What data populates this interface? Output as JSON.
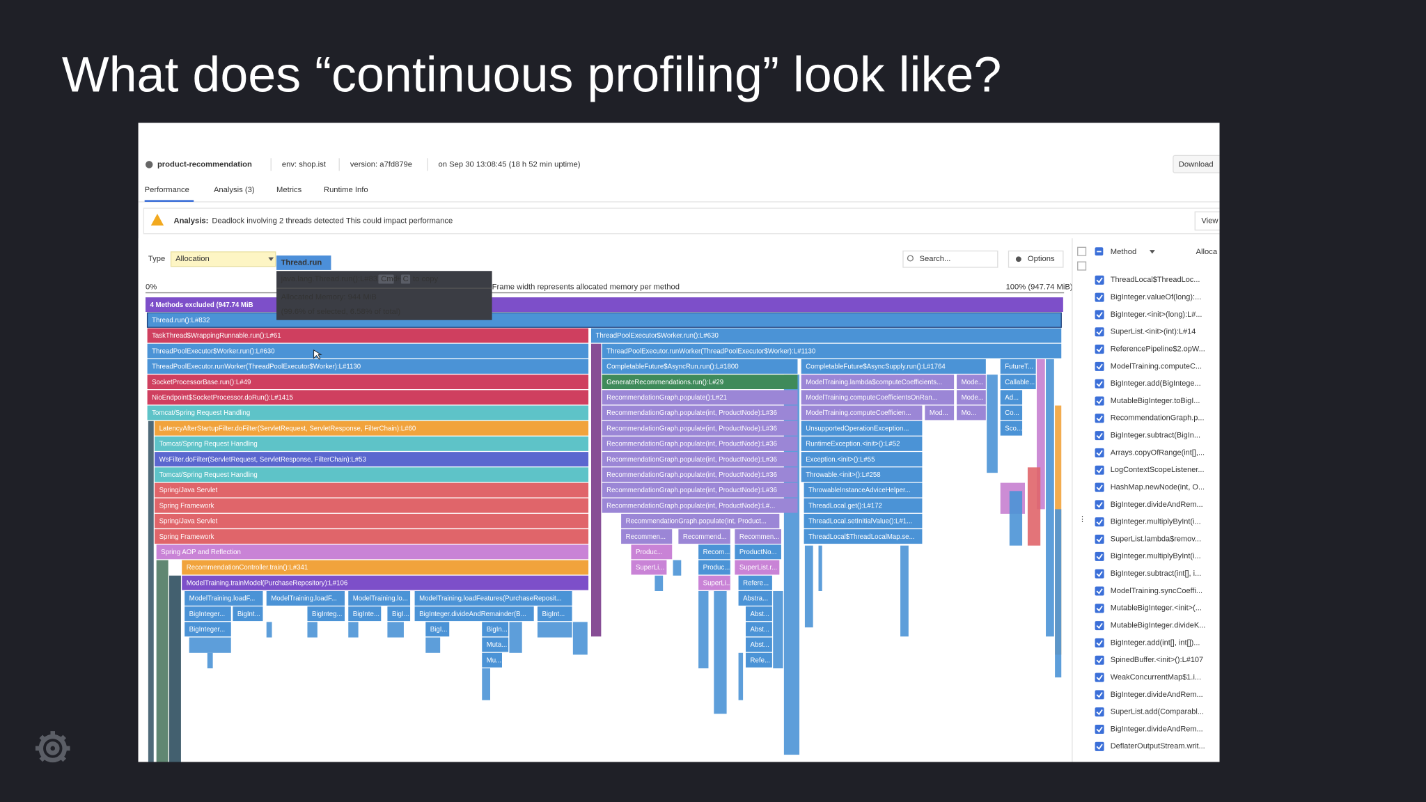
{
  "slide": {
    "title": "What does “continuous profiling” look like?"
  },
  "header": {
    "service": "product-recommendation",
    "env": "env: shop.ist",
    "version": "version: a7fd879e",
    "time": "on Sep 30 13:08:45 (18 h 52 min uptime)",
    "download": "Download"
  },
  "tabs": [
    "Performance",
    "Analysis (3)",
    "Metrics",
    "Runtime Info"
  ],
  "banner": {
    "label": "Analysis:",
    "text": "Deadlock involving 2 threads detected This could impact performance",
    "action": "View"
  },
  "toolbar": {
    "type_label": "Type",
    "type_value": "Allocation",
    "search": "Search...",
    "options": "Options"
  },
  "scale": {
    "left": "0%",
    "caption": "Frame width represents allocated memory per method",
    "right": "100% (947.74 MiB)"
  },
  "tooltip": {
    "name": "Thread.run",
    "frame": "java.lang.Thread.run():L#832",
    "key1": "Cmd",
    "plus": "+",
    "key2": "C",
    "copy": "to copy",
    "memory": "Allocated Memory: 944 MiB",
    "share": "(99.6% of selected, 6.58% of total)"
  },
  "flame": {
    "rows": [
      [
        "4 Methods excluded (947.74 MiB"
      ],
      [
        "Thread.run():L#832"
      ],
      [
        "TaskThread$WrappingRunnable.run():L#61",
        "ThreadPoolExecutor$Worker.run():L#630"
      ],
      [
        "ThreadPoolExecutor$Worker.run():L#630",
        "ThreadPoolExecutor.runWorker(ThreadPoolExecutor$Worker):L#1130"
      ],
      [
        "ThreadPoolExecutor.runWorker(ThreadPoolExecutor$Worker):L#1130",
        "CompletableFuture$AsyncRun.run():L#1800",
        "CompletableFuture$AsyncSupply.run():L#1764",
        "FutureT..."
      ],
      [
        "SocketProcessorBase.run():L#49",
        "GenerateRecommendations.run():L#29",
        "ModelTraining.lambda$computeCoefficients...",
        "Mode...",
        "Callable..."
      ],
      [
        "NioEndpoint$SocketProcessor.doRun():L#1415",
        "RecommendationGraph.populate():L#21",
        "ModelTraining.computeCoefficientsOnRan...",
        "Mode...",
        "Ad..."
      ],
      [
        "Tomcat/Spring Request Handling",
        "RecommendationGraph.populate(int, ProductNode):L#36",
        "ModelTraining.computeCoefficien...",
        "Mod...",
        "Mo...",
        "Co..."
      ],
      [
        "LatencyAfterStartupFilter.doFilter(ServletRequest, ServletResponse, FilterChain):L#60",
        "RecommendationGraph.populate(int, ProductNode):L#36",
        "UnsupportedOperationException...",
        "Sco..."
      ],
      [
        "Tomcat/Spring Request Handling",
        "RecommendationGraph.populate(int, ProductNode):L#36",
        "RuntimeException.<init>():L#52"
      ],
      [
        "WsFilter.doFilter(ServletRequest, ServletResponse, FilterChain):L#53",
        "RecommendationGraph.populate(int, ProductNode):L#36",
        "Exception.<init>():L#55"
      ],
      [
        "Tomcat/Spring Request Handling",
        "RecommendationGraph.populate(int, ProductNode):L#36",
        "Throwable.<init>():L#258"
      ],
      [
        "Spring/Java Servlet",
        "RecommendationGraph.populate(int, ProductNode):L#36",
        "ThrowableInstanceAdviceHelper..."
      ],
      [
        "Spring Framework",
        "RecommendationGraph.populate(int, ProductNode):L#...",
        "ThreadLocal.get():L#172"
      ],
      [
        "Spring/Java Servlet",
        "RecommendationGraph.populate(int, Product...",
        "ThreadLocal.setInitialValue():L#1..."
      ],
      [
        "Spring Framework",
        "Recommen...",
        "Recommend...",
        "Recommen...",
        "ThreadLocal$ThreadLocalMap.se..."
      ],
      [
        "Spring AOP and Reflection",
        "Produc...",
        "Recom...",
        "ProductNo..."
      ],
      [
        "RecommendationController.train():L#341",
        "SuperLi...",
        "Produc...",
        "SuperList.r..."
      ],
      [
        "ModelTraining.trainModel(PurchaseRepository):L#106",
        "SuperLi...",
        "Refere..."
      ],
      [
        "ModelTraining.loadF...",
        "ModelTraining.loadF...",
        "ModelTraining.lo...",
        "ModelTraining.loadFeatures(PurchaseReposit...",
        "Abstra..."
      ],
      [
        "BigInteger...",
        "BigInt...",
        "BigInteg...",
        "BigInte...",
        "BigI...",
        "BigInteger.divideAndRemainder(B...",
        "BigInt...",
        "Abst..."
      ],
      [
        "BigInteger...",
        "BigI...",
        "BigIn...",
        "Abst..."
      ],
      [
        "Muta...",
        "Abst..."
      ],
      [
        "Mu...",
        "Refe..."
      ]
    ]
  },
  "methods": {
    "header": "Method",
    "column": "Alloca",
    "items": [
      "ThreadLocal$ThreadLoc...",
      "BigInteger.valueOf(long):...",
      "BigInteger.<init>(long):L#...",
      "SuperList.<init>(int):L#14",
      "ReferencePipeline$2.opW...",
      "ModelTraining.computeC...",
      "BigInteger.add(BigIntege...",
      "MutableBigInteger.toBigI...",
      "RecommendationGraph.p...",
      "BigInteger.subtract(BigIn...",
      "Arrays.copyOfRange(int[],...",
      "LogContextScopeListener...",
      "HashMap.newNode(int, O...",
      "BigInteger.divideAndRem...",
      "BigInteger.multiplyByInt(i...",
      "SuperList.lambda$remov...",
      "BigInteger.multiplyByInt(i...",
      "BigInteger.subtract(int[], i...",
      "ModelTraining.syncCoeffi...",
      "MutableBigInteger.<init>(...",
      "MutableBigInteger.divideK...",
      "BigInteger.add(int[], int[])...",
      "SpinedBuffer.<init>():L#107",
      "WeakConcurrentMap$1.i...",
      "BigInteger.divideAndRem...",
      "SuperList.add(Comparabl...",
      "BigInteger.divideAndRem...",
      "DeflaterOutputStream.writ..."
    ]
  }
}
